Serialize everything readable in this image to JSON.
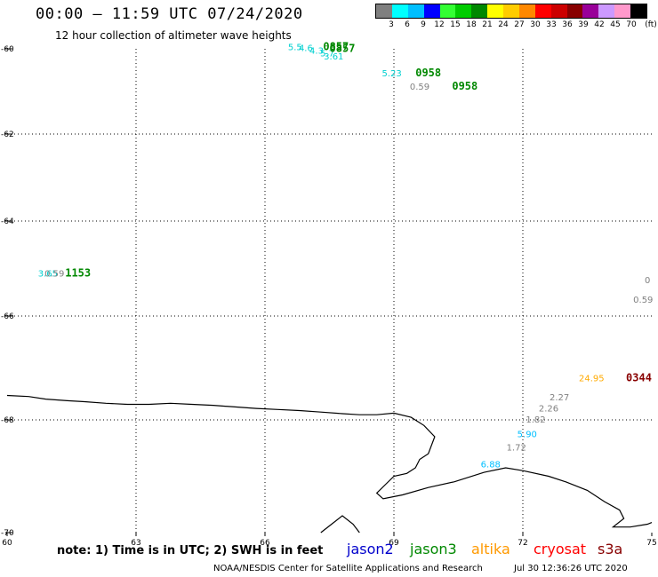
{
  "header": {
    "title": "00:00 – 11:59 UTC 07/24/2020",
    "subtitle": "12 hour collection of altimeter wave heights"
  },
  "legend": {
    "unit": "(ft)",
    "bins": [
      {
        "label": "3",
        "color": "#7f7f7f"
      },
      {
        "label": "6",
        "color": "#00ffff"
      },
      {
        "label": "9",
        "color": "#00bfff"
      },
      {
        "label": "12",
        "color": "#0000ff"
      },
      {
        "label": "15",
        "color": "#33ff33"
      },
      {
        "label": "18",
        "color": "#00cc00"
      },
      {
        "label": "21",
        "color": "#008800"
      },
      {
        "label": "24",
        "color": "#ffff00"
      },
      {
        "label": "27",
        "color": "#ffcc00"
      },
      {
        "label": "30",
        "color": "#ff8800"
      },
      {
        "label": "33",
        "color": "#ff0000"
      },
      {
        "label": "36",
        "color": "#cc0000"
      },
      {
        "label": "39",
        "color": "#880000"
      },
      {
        "label": "42",
        "color": "#990099"
      },
      {
        "label": "45",
        "color": "#cc99ff"
      },
      {
        "label": "70",
        "color": "#ff99cc"
      },
      {
        "label": "",
        "color": "#000000"
      }
    ]
  },
  "map": {
    "lon_range": [
      60,
      75
    ],
    "lat_range": [
      -70,
      -60
    ],
    "lon_ticks": [
      "60",
      "63",
      "66",
      "69",
      "72",
      "75"
    ],
    "lat_ticks": [
      "-60",
      "-62",
      "-64",
      "-66",
      "-68",
      "-70"
    ],
    "coastline": [
      [
        60,
        -67.53
      ],
      [
        60.5,
        -67.55
      ],
      [
        60.9,
        -67.6
      ],
      [
        61.4,
        -67.63
      ],
      [
        61.8,
        -67.65
      ],
      [
        62.3,
        -67.68
      ],
      [
        62.8,
        -67.7
      ],
      [
        63.3,
        -67.7
      ],
      [
        63.8,
        -67.68
      ],
      [
        64.3,
        -67.7
      ],
      [
        64.8,
        -67.72
      ],
      [
        65.3,
        -67.75
      ],
      [
        65.8,
        -67.78
      ],
      [
        66.3,
        -67.8
      ],
      [
        66.8,
        -67.82
      ],
      [
        67.3,
        -67.85
      ],
      [
        67.8,
        -67.88
      ],
      [
        68.2,
        -67.9
      ],
      [
        68.6,
        -67.9
      ],
      [
        69.0,
        -67.87
      ],
      [
        69.4,
        -67.95
      ],
      [
        69.7,
        -68.1
      ],
      [
        69.95,
        -68.3
      ],
      [
        69.8,
        -68.6
      ],
      [
        69.6,
        -68.7
      ],
      [
        69.5,
        -68.85
      ],
      [
        69.3,
        -68.95
      ],
      [
        69.0,
        -69.0
      ],
      [
        68.8,
        -69.15
      ],
      [
        68.6,
        -69.3
      ],
      [
        68.75,
        -69.4
      ],
      [
        69.2,
        -69.33
      ],
      [
        69.8,
        -69.2
      ],
      [
        70.4,
        -69.1
      ],
      [
        71.1,
        -68.93
      ],
      [
        71.6,
        -68.85
      ],
      [
        72.0,
        -68.9
      ],
      [
        72.6,
        -69.0
      ],
      [
        73.0,
        -69.1
      ],
      [
        73.5,
        -69.25
      ],
      [
        73.9,
        -69.45
      ],
      [
        74.25,
        -69.6
      ],
      [
        74.35,
        -69.75
      ],
      [
        74.1,
        -69.9
      ],
      [
        74.5,
        -69.9
      ],
      [
        74.9,
        -69.85
      ],
      [
        75,
        -69.82
      ]
    ],
    "coastline2": [
      [
        68.2,
        -70.0
      ],
      [
        68.05,
        -69.85
      ],
      [
        67.8,
        -69.7
      ],
      [
        67.55,
        -69.85
      ],
      [
        67.3,
        -70.0
      ]
    ],
    "observations": [
      {
        "lon": 66.7,
        "lat": -60.03,
        "text": "5.5",
        "color": "#00d0d0"
      },
      {
        "lon": 66.95,
        "lat": -60.05,
        "text": "4.6",
        "color": "#00d0d0"
      },
      {
        "lon": 67.2,
        "lat": -60.11,
        "text": "4.3",
        "color": "#00d0d0"
      },
      {
        "lon": 67.45,
        "lat": -60.18,
        "text": "5.7",
        "color": "#00d0d0"
      },
      {
        "lon": 67.6,
        "lat": -60.25,
        "text": "3.61",
        "color": "#00d0d0"
      },
      {
        "lon": 67.65,
        "lat": -60.03,
        "text": "0857",
        "color": "#008800",
        "bold": true
      },
      {
        "lon": 67.8,
        "lat": -60.07,
        "text": "0857",
        "color": "#008800",
        "bold": true
      },
      {
        "lon": 68.95,
        "lat": -60.65,
        "text": "5.23",
        "color": "#00d0d0"
      },
      {
        "lon": 69.8,
        "lat": -60.65,
        "text": "0958",
        "color": "#008800",
        "bold": true
      },
      {
        "lon": 69.6,
        "lat": -60.96,
        "text": "0.59",
        "color": "#808080"
      },
      {
        "lon": 70.65,
        "lat": -60.96,
        "text": "0958",
        "color": "#008800",
        "bold": true
      },
      {
        "lon": 60.95,
        "lat": -65.17,
        "text": "3.65",
        "color": "#00d0d0"
      },
      {
        "lon": 61.1,
        "lat": -65.17,
        "text": "0.59",
        "color": "#808080"
      },
      {
        "lon": 61.65,
        "lat": -65.17,
        "text": "1153",
        "color": "#008800",
        "bold": true
      },
      {
        "lon": 74.9,
        "lat": -65.31,
        "text": "0",
        "color": "#808080"
      },
      {
        "lon": 74.8,
        "lat": -65.72,
        "text": "0.59",
        "color": "#808080"
      },
      {
        "lon": 73.6,
        "lat": -67.26,
        "text": "24.95",
        "color": "#ffaa00"
      },
      {
        "lon": 74.7,
        "lat": -67.26,
        "text": "0344",
        "color": "#880000",
        "bold": true
      },
      {
        "lon": 72.85,
        "lat": -67.62,
        "text": "2.27",
        "color": "#808080"
      },
      {
        "lon": 72.6,
        "lat": -67.84,
        "text": "2.26",
        "color": "#808080"
      },
      {
        "lon": 72.3,
        "lat": -68.05,
        "text": "1.82",
        "color": "#808080"
      },
      {
        "lon": 72.1,
        "lat": -68.31,
        "text": "5.90",
        "color": "#00bfff"
      },
      {
        "lon": 71.85,
        "lat": -68.54,
        "text": "1.72",
        "color": "#808080"
      },
      {
        "lon": 71.25,
        "lat": -68.84,
        "text": "6.88",
        "color": "#00bfff"
      }
    ]
  },
  "footer": {
    "note": "note: 1) Time is in UTC; 2) SWH is in feet",
    "satellites": [
      {
        "name": "jason2",
        "color": "#0000cc"
      },
      {
        "name": "jason3",
        "color": "#008800"
      },
      {
        "name": "altika",
        "color": "#ff9900"
      },
      {
        "name": "cryosat",
        "color": "#ff0000"
      },
      {
        "name": "s3a",
        "color": "#880000"
      }
    ],
    "credit": "NOAA/NESDIS Center for Satellite Applications and Research",
    "timestamp": "Jul 30 12:36:26 UTC 2020"
  }
}
